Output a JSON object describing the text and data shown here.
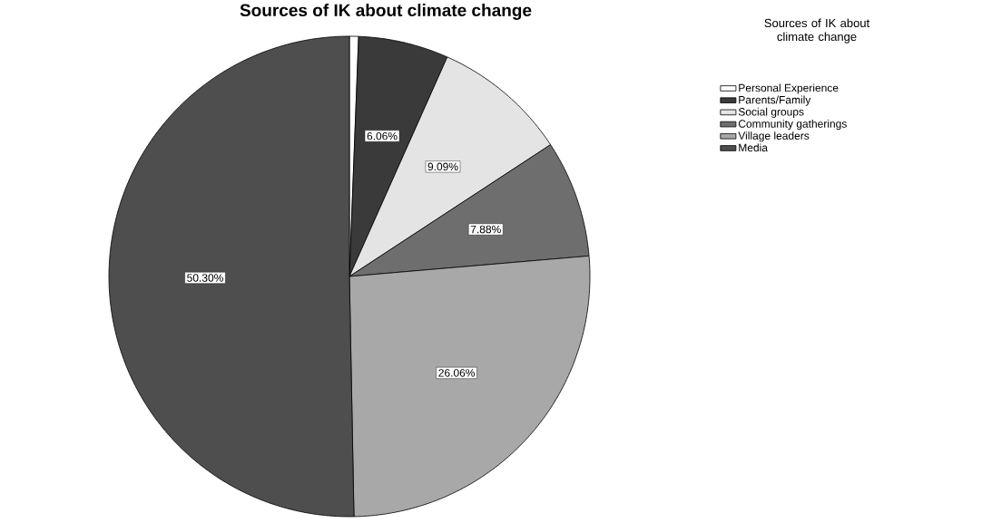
{
  "chart_data": {
    "type": "pie",
    "title": "Sources of IK about climate change",
    "legend_title": "Sources of IK about climate change",
    "legend": "top right",
    "categories": [
      "Personal Experience",
      "Parents/Family",
      "Social groups",
      "Community gatherings",
      "Village leaders",
      "Media"
    ],
    "values": [
      0.61,
      6.06,
      9.09,
      7.88,
      26.06,
      50.3
    ],
    "value_labels": [
      null,
      "6.06%",
      "9.09%",
      "7.88%",
      "26.06%",
      "50.30%"
    ],
    "colors": [
      "#ffffff",
      "#3a3a3a",
      "#e4e4e4",
      "#6e6e6e",
      "#a8a8a8",
      "#4e4e4e"
    ]
  }
}
